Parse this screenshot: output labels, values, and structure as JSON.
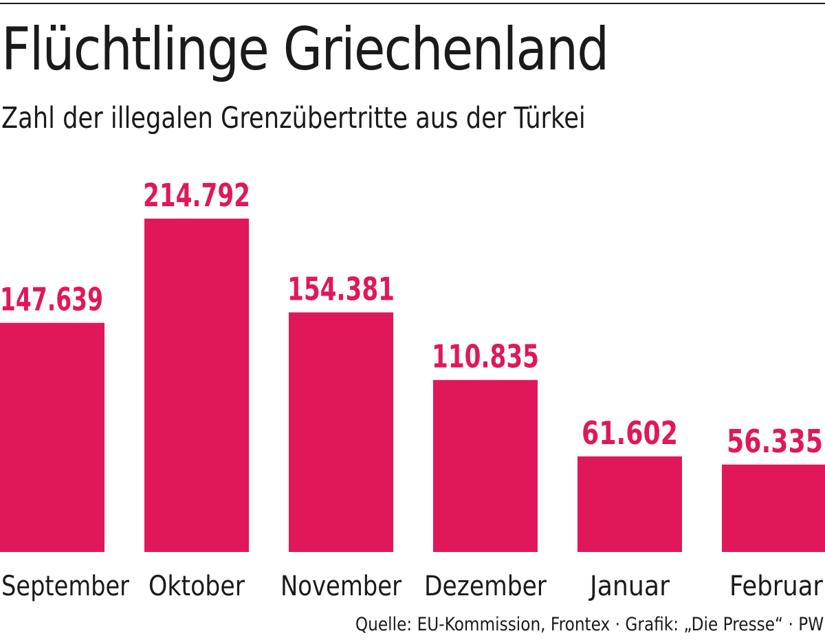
{
  "header": {
    "title": "Flüchtlinge Griechenland",
    "subtitle": "Zahl der illegalen Grenzübertritte aus der Türkei"
  },
  "chart_data": {
    "type": "bar",
    "title": "Flüchtlinge Griechenland",
    "subtitle": "Zahl der illegalen Grenzübertritte aus der Türkei",
    "categories": [
      "September",
      "Oktober",
      "November",
      "Dezember",
      "Januar",
      "Februar"
    ],
    "values": [
      147639,
      214792,
      154381,
      110835,
      61602,
      56335
    ],
    "value_labels": [
      "147.639",
      "214.792",
      "154.381",
      "110.835",
      "61.602",
      "56.335"
    ],
    "xlabel": "",
    "ylabel": "",
    "ylim": [
      0,
      214792
    ],
    "grid": false,
    "legend": "none",
    "bar_color": "#e0185a"
  },
  "footer": {
    "source": "Quelle: EU-Kommission, Frontex · Grafik: „Die Presse“ · PW"
  }
}
